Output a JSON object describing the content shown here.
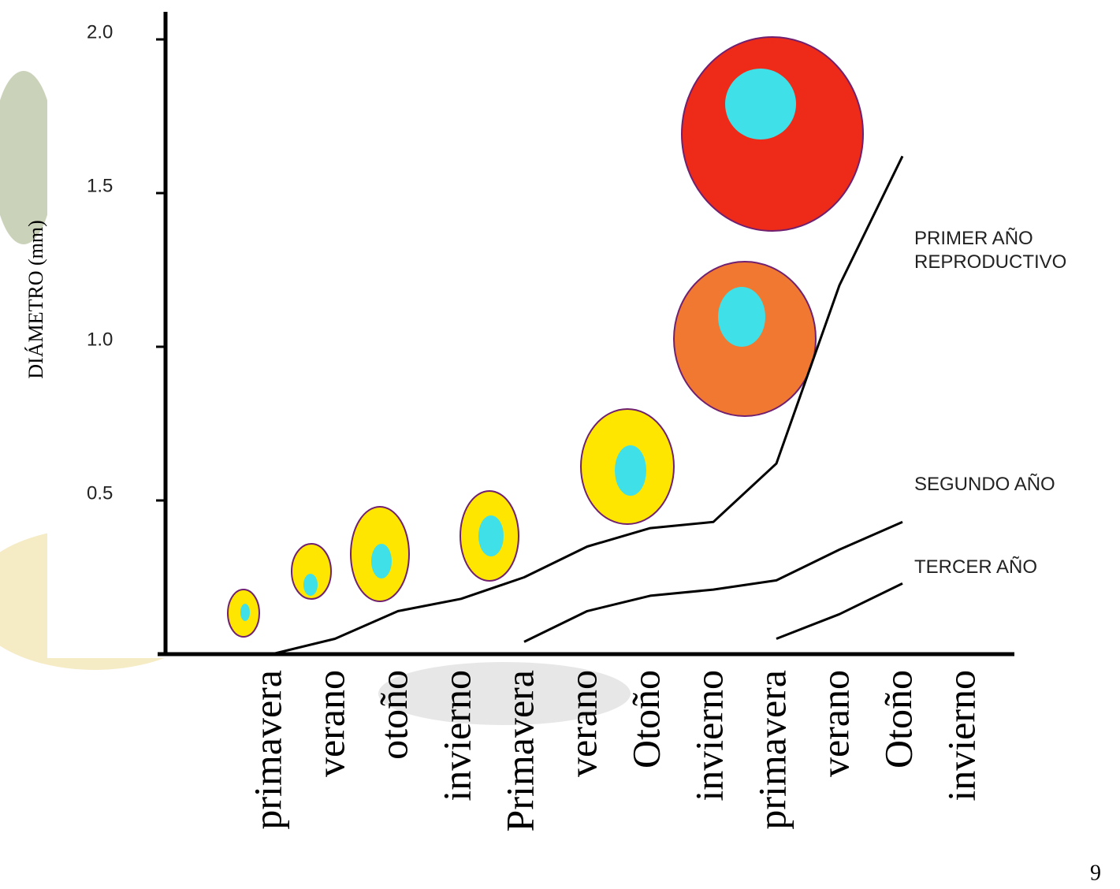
{
  "chart_data": {
    "type": "line",
    "y_label": "DIÁMETRO (mm)",
    "page_number": "9",
    "categories": [
      "primavera",
      "verano",
      "otoño",
      "invierno",
      "Primavera",
      "verano",
      "Otoño",
      "invierno",
      "primavera",
      "verano",
      "Otoño",
      "invierno"
    ],
    "ylim": [
      0,
      2.1
    ],
    "yticks": [
      {
        "value": 0.5,
        "label": "0.5"
      },
      {
        "value": 1.0,
        "label": "1.0"
      },
      {
        "value": 1.5,
        "label": "1.5"
      },
      {
        "value": 2.0,
        "label": "2.0"
      }
    ],
    "series": [
      {
        "name": "PRIMER AÑO REPRODUCTIVO",
        "color": "#000000",
        "values": [
          0.0,
          0.05,
          0.14,
          0.18,
          0.25,
          0.35,
          0.41,
          0.43,
          0.62,
          1.2,
          1.62,
          null
        ]
      },
      {
        "name": "SEGUNDO AÑO",
        "color": "#000000",
        "values": [
          null,
          null,
          null,
          null,
          0.04,
          0.14,
          0.19,
          0.21,
          0.24,
          0.34,
          0.43,
          null
        ]
      },
      {
        "name": "TERCER AÑO",
        "color": "#000000",
        "values": [
          null,
          null,
          null,
          null,
          null,
          null,
          null,
          null,
          0.05,
          0.13,
          0.23,
          null
        ]
      }
    ]
  }
}
